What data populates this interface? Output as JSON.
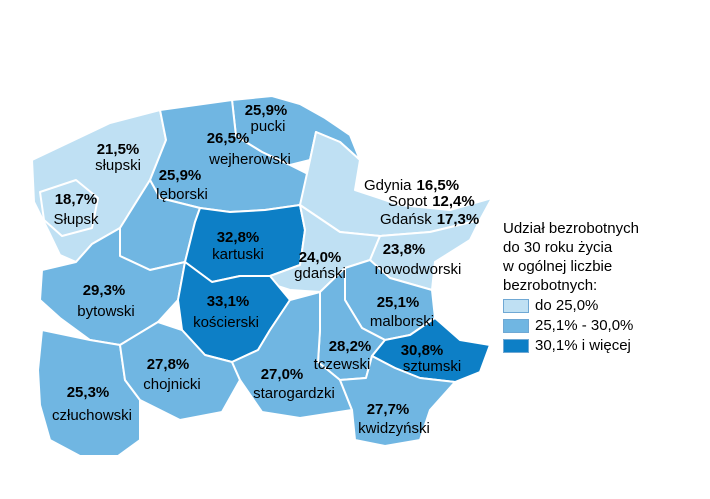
{
  "colors": {
    "low": "#bfe0f3",
    "mid": "#70b6e2",
    "high": "#0d7fc6"
  },
  "legend": {
    "title_lines": [
      "Udział bezrobotnych",
      "do 30 roku życia",
      "w ogólnej liczbie",
      "bezrobotnych:"
    ],
    "items": [
      {
        "label": "do 25,0%",
        "color": "low"
      },
      {
        "label": "25,1% - 30,0%",
        "color": "mid"
      },
      {
        "label": "30,1% i więcej",
        "color": "high"
      }
    ]
  },
  "regions": [
    {
      "name": "słupski",
      "value": "21,5%",
      "class": "low"
    },
    {
      "name": "Słupsk",
      "value": "18,7%",
      "class": "low"
    },
    {
      "name": "pucki",
      "value": "25,9%",
      "class": "mid"
    },
    {
      "name": "wejherowski",
      "value": "26,5%",
      "class": "mid"
    },
    {
      "name": "lęborski",
      "value": "25,9%",
      "class": "mid"
    },
    {
      "name": "kartuski",
      "value": "32,8%",
      "class": "high"
    },
    {
      "name": "gdański",
      "value": "24,0%",
      "class": "low"
    },
    {
      "name": "nowodworski",
      "value": "23,8%",
      "class": "low"
    },
    {
      "name": "bytowski",
      "value": "29,3%",
      "class": "mid"
    },
    {
      "name": "kościerski",
      "value": "33,1%",
      "class": "high"
    },
    {
      "name": "malborski",
      "value": "25,1%",
      "class": "mid"
    },
    {
      "name": "tczewski",
      "value": "28,2%",
      "class": "mid"
    },
    {
      "name": "sztumski",
      "value": "30,8%",
      "class": "high"
    },
    {
      "name": "człuchowski",
      "value": "25,3%",
      "class": "mid"
    },
    {
      "name": "chojnicki",
      "value": "27,8%",
      "class": "mid"
    },
    {
      "name": "starogardzki",
      "value": "27,0%",
      "class": "mid"
    },
    {
      "name": "kwidzyński",
      "value": "27,7%",
      "class": "mid"
    }
  ],
  "cities": [
    {
      "name": "Gdynia",
      "value": "16,5%"
    },
    {
      "name": "Sopot",
      "value": "12,4%"
    },
    {
      "name": "Gdańsk",
      "value": "17,3%"
    }
  ]
}
